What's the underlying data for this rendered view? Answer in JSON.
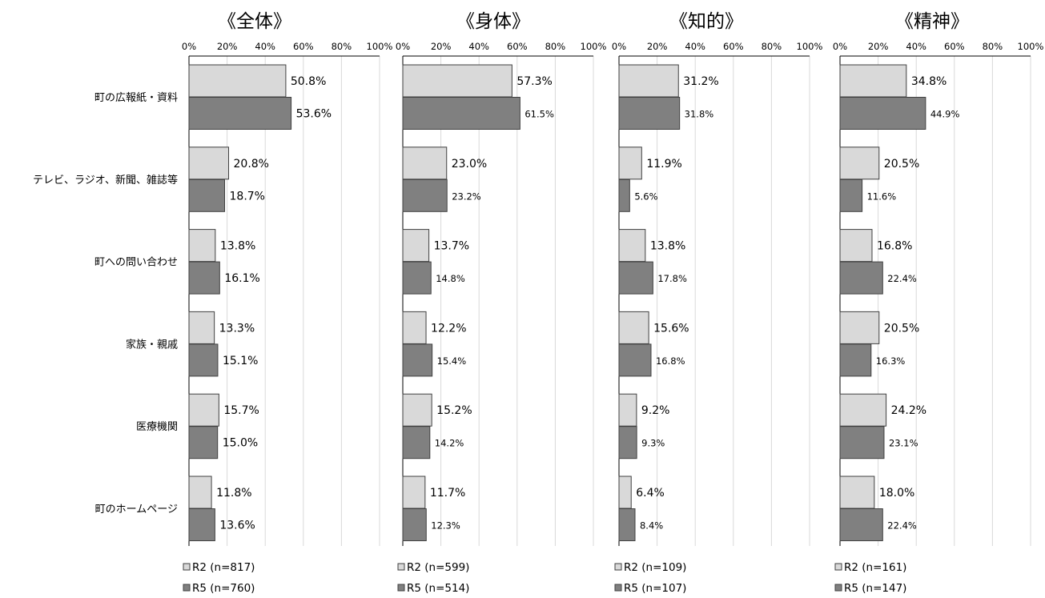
{
  "colors": {
    "r2": "#d9d9d9",
    "r5": "#808080",
    "border": "#404040",
    "grid": "#d9d9d9",
    "text": "#000000"
  },
  "categories": [
    "町の広報紙・資料",
    "テレビ、ラジオ、新聞、雑誌等",
    "町への問い合わせ",
    "家族・親戚",
    "医療機関",
    "町のホームページ"
  ],
  "chart_data": [
    {
      "type": "bar",
      "title": "《全体》",
      "xlim": [
        0,
        100
      ],
      "x_ticks": [
        "0%",
        "20%",
        "40%",
        "60%",
        "80%",
        "100%"
      ],
      "grid": true,
      "legend_position": "bottom-left",
      "series": [
        {
          "name": "R2 (n=817)",
          "values": [
            50.8,
            20.8,
            13.8,
            13.3,
            15.7,
            11.8
          ],
          "labels": [
            "50.8%",
            "20.8%",
            "13.8%",
            "13.3%",
            "15.7%",
            "11.8%"
          ]
        },
        {
          "name": "R5 (n=760)",
          "values": [
            53.6,
            18.7,
            16.1,
            15.1,
            15.0,
            13.6
          ],
          "labels": [
            "53.6%",
            "18.7%",
            "16.1%",
            "15.1%",
            "15.0%",
            "13.6%"
          ]
        }
      ]
    },
    {
      "type": "bar",
      "title": "《身体》",
      "xlim": [
        0,
        100
      ],
      "x_ticks": [
        "0%",
        "20%",
        "40%",
        "60%",
        "80%",
        "100%"
      ],
      "grid": true,
      "legend_position": "bottom-left",
      "series": [
        {
          "name": "R2 (n=599)",
          "values": [
            57.3,
            23.0,
            13.7,
            12.2,
            15.2,
            11.7
          ],
          "labels": [
            "57.3%",
            "23.0%",
            "13.7%",
            "12.2%",
            "15.2%",
            "11.7%"
          ]
        },
        {
          "name": "R5 (n=514)",
          "values": [
            61.5,
            23.2,
            14.8,
            15.4,
            14.2,
            12.3
          ],
          "labels": [
            "61.5%",
            "23.2%",
            "14.8%",
            "15.4%",
            "14.2%",
            "12.3%"
          ]
        }
      ]
    },
    {
      "type": "bar",
      "title": "《知的》",
      "xlim": [
        0,
        100
      ],
      "x_ticks": [
        "0%",
        "20%",
        "40%",
        "60%",
        "80%",
        "100%"
      ],
      "grid": true,
      "legend_position": "bottom-left",
      "series": [
        {
          "name": "R2 (n=109)",
          "values": [
            31.2,
            11.9,
            13.8,
            15.6,
            9.2,
            6.4
          ],
          "labels": [
            "31.2%",
            "11.9%",
            "13.8%",
            "15.6%",
            "9.2%",
            "6.4%"
          ]
        },
        {
          "name": "R5 (n=107)",
          "values": [
            31.8,
            5.6,
            17.8,
            16.8,
            9.3,
            8.4
          ],
          "labels": [
            "31.8%",
            "5.6%",
            "17.8%",
            "16.8%",
            "9.3%",
            "8.4%"
          ]
        }
      ]
    },
    {
      "type": "bar",
      "title": "《精神》",
      "xlim": [
        0,
        100
      ],
      "x_ticks": [
        "0%",
        "20%",
        "40%",
        "60%",
        "80%",
        "100%"
      ],
      "grid": true,
      "legend_position": "bottom-left",
      "series": [
        {
          "name": "R2 (n=161)",
          "values": [
            34.8,
            20.5,
            16.8,
            20.5,
            24.2,
            18.0
          ],
          "labels": [
            "34.8%",
            "20.5%",
            "16.8%",
            "20.5%",
            "24.2%",
            "18.0%"
          ]
        },
        {
          "name": "R5 (n=147)",
          "values": [
            44.9,
            11.6,
            22.4,
            16.3,
            23.1,
            22.4
          ],
          "labels": [
            "44.9%",
            "11.6%",
            "22.4%",
            "16.3%",
            "23.1%",
            "22.4%"
          ]
        }
      ]
    }
  ]
}
